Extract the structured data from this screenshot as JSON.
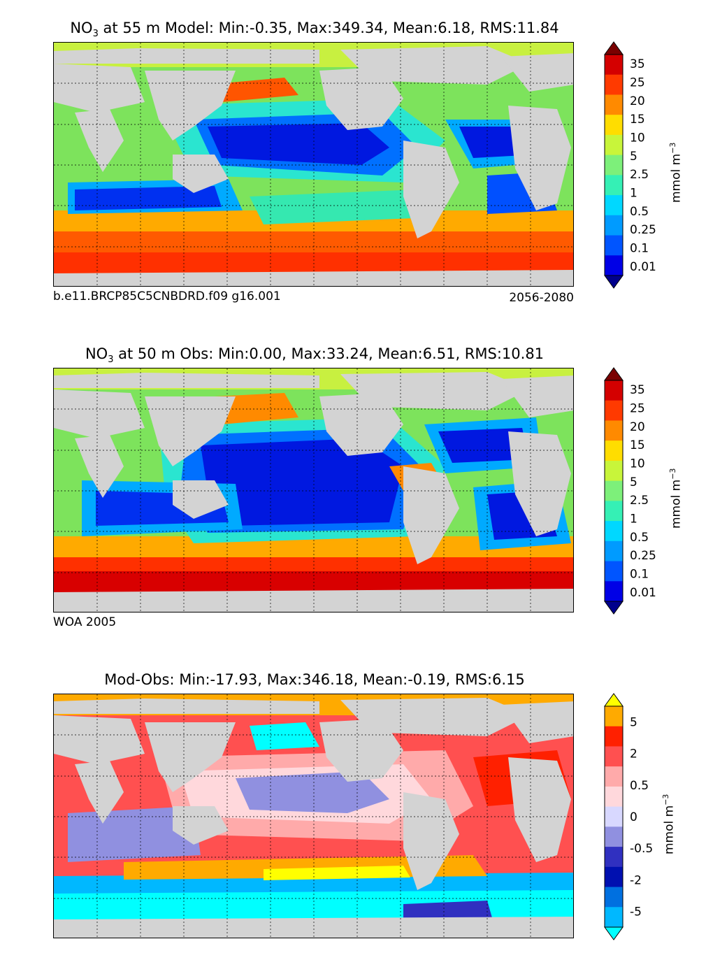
{
  "panels": [
    {
      "id": "model",
      "title_prefix": "NO",
      "title_sub": "3",
      "title_rest": " at 55 m Model: Min:-0.35, Max:349.34, Mean:6.18, RMS:11.84",
      "caption_left": "b.e11.BRCP85C5CNBDRD.f09 g16.001",
      "caption_right": "2056-2080",
      "colorbar_label": "mmol m",
      "colorbar_exp": "−3",
      "colorbar_ticks": [
        "35",
        "25",
        "20",
        "15",
        "10",
        "5",
        "2.5",
        "1",
        "0.5",
        "0.25",
        "0.1",
        "0.01"
      ],
      "colorbar_colors": [
        "#7a0000",
        "#d40000",
        "#ff3a00",
        "#ff8a00",
        "#ffdd00",
        "#c8f53a",
        "#7df07a",
        "#35f0b5",
        "#00d8ff",
        "#009bff",
        "#0055ff",
        "#0000e6",
        "#00008c"
      ],
      "min": -0.35,
      "max": 349.34,
      "mean": 6.18,
      "rms": 11.84
    },
    {
      "id": "obs",
      "title_prefix": "NO",
      "title_sub": "3",
      "title_rest": " at 50 m Obs: Min:0.00, Max:33.24, Mean:6.51, RMS:10.81",
      "caption_left": "WOA 2005",
      "caption_right": "",
      "colorbar_label": "mmol m",
      "colorbar_exp": "−3",
      "colorbar_ticks": [
        "35",
        "25",
        "20",
        "15",
        "10",
        "5",
        "2.5",
        "1",
        "0.5",
        "0.25",
        "0.1",
        "0.01"
      ],
      "colorbar_colors": [
        "#7a0000",
        "#d40000",
        "#ff3a00",
        "#ff8a00",
        "#ffdd00",
        "#c8f53a",
        "#7df07a",
        "#35f0b5",
        "#00d8ff",
        "#009bff",
        "#0055ff",
        "#0000e6",
        "#00008c"
      ],
      "min": 0.0,
      "max": 33.24,
      "mean": 6.51,
      "rms": 10.81
    },
    {
      "id": "diff",
      "title_prefix": "",
      "title_sub": "",
      "title_rest": "Mod-Obs: Min:-17.93, Max:346.18, Mean:-0.19, RMS:6.15",
      "caption_left": "",
      "caption_right": "",
      "colorbar_label": "mmol m",
      "colorbar_exp": "−3",
      "colorbar_ticks": [
        "5",
        "2",
        "0.5",
        "0",
        "-0.5",
        "-2",
        "-5"
      ],
      "colorbar_colors": [
        "#ffff00",
        "#ffaa00",
        "#ff2000",
        "#ff5050",
        "#ffaaaa",
        "#ffd8dc",
        "#d8d8ff",
        "#9090e0",
        "#3030c0",
        "#0010b0",
        "#0070e0",
        "#00b8ff",
        "#00ffff"
      ],
      "min": -17.93,
      "max": 346.18,
      "mean": -0.19,
      "rms": 6.15
    }
  ],
  "chart_data": [
    {
      "type": "heatmap",
      "title": "NO3 at 55 m Model: Min:-0.35, Max:349.34, Mean:6.18, RMS:11.84",
      "variable": "NO3",
      "depth": "55 m",
      "source": "b.e11.BRCP85C5CNBDRD.f09 g16.001",
      "period": "2056-2080",
      "units": "mmol m^-3",
      "levels": [
        0.01,
        0.1,
        0.25,
        0.5,
        1,
        2.5,
        5,
        10,
        15,
        20,
        25,
        35
      ],
      "stats": {
        "min": -0.35,
        "max": 349.34,
        "mean": 6.18,
        "rms": 11.84
      }
    },
    {
      "type": "heatmap",
      "title": "NO3 at 50 m Obs: Min:0.00, Max:33.24, Mean:6.51, RMS:10.81",
      "variable": "NO3",
      "depth": "50 m",
      "source": "WOA 2005",
      "units": "mmol m^-3",
      "levels": [
        0.01,
        0.1,
        0.25,
        0.5,
        1,
        2.5,
        5,
        10,
        15,
        20,
        25,
        35
      ],
      "stats": {
        "min": 0.0,
        "max": 33.24,
        "mean": 6.51,
        "rms": 10.81
      }
    },
    {
      "type": "heatmap",
      "title": "Mod-Obs: Min:-17.93, Max:346.18, Mean:-0.19, RMS:6.15",
      "units": "mmol m^-3",
      "levels": [
        -5,
        -2,
        -0.5,
        0,
        0.5,
        2,
        5
      ],
      "stats": {
        "min": -17.93,
        "max": 346.18,
        "mean": -0.19,
        "rms": 6.15
      }
    }
  ]
}
